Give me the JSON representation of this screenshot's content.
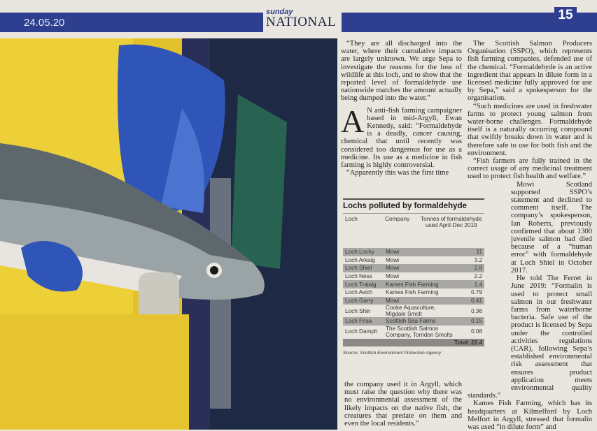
{
  "header": {
    "date": "24.05.20",
    "logo_top": "sunday",
    "logo_main": "NATIONAL",
    "page": "15"
  },
  "article": {
    "col1": [
      "“They are all discharged into the water, where their cumulative impacts are largely unknown. We urge Sepa to investigate the reasons for the loss of wildlife at this loch, and to show that the reported level of formaldehyde use nationwide matches the amount actually being dumped into the water.”",
      "N anti-fish farming campaigner based in mid-Argyll, Ewan Kennedy, said: “Formaldehyde is a deadly, cancer causing, chemical that until recently was considered too dangerous for use as a medicine. Its use as a medicine in fish farming is highly controversial.",
      "“Apparently this was the first time"
    ],
    "drop_cap": "A",
    "col1_bottom": "the company used it in Argyll, which must raise the question why there was no environmental assessment of the likely impacts on the native fish, the creatures that predate on them and even the local residents.”",
    "col2": [
      "The Scottish Salmon Producers Organisation (SSPO), which represents fish farming companies, defended use of the chemical. “Formaldehyde is an active ingredient that appears in dilute form in a licensed medicine fully approved for use by Sepa,” said a spokesperson for the organisation.",
      "“Such medicines are used in freshwater farms to protect young salmon from water-borne challenges. Formaldehyde itself is a naturally occurring compound that swiftly breaks down in water and is therefore safe to use for both fish and the environment.",
      "“Fish farmers are fully trained in the correct usage of any medicinal treatment used to protect fish health and welfare.”",
      "Mowi Scotland supported SSPO’s statement and declined to comment itself. The company’s spokesperson, Ian Roberts, previously confirmed that about 1300 juvenile salmon had died because of a “human error” with formaldehyde at Loch Shiel in October 2017.",
      "He told The Ferret in June 2019: “Formalin is used to protect small salmon in our freshwater farms from waterborne bacteria. Safe use of the product is licensed by Sepa under the controlled activities regulations (CAR), following Sepa’s established environmental risk assessment that ensures product application meets environmental quality standards.”",
      "Kames Fish Farming, which has its headquarters at Kilmelford by Loch Melfort in Argyll, stressed that formalin was used “in dilute form” and"
    ]
  },
  "table": {
    "title": "Lochs polluted by formaldehyde",
    "headers": [
      "Loch",
      "Company",
      "Tonnes of formaldehyde used April-Dec 2019"
    ],
    "rows": [
      [
        "Loch Lochy",
        "Mowi",
        11
      ],
      [
        "Loch Arkaig",
        "Mowi",
        3.2
      ],
      [
        "Loch Shiel",
        "Mowi",
        2.8
      ],
      [
        "Loch Ness",
        "Mowi",
        2.2
      ],
      [
        "Loch Tralaig",
        "Kames Fish Farming",
        1.4
      ],
      [
        "Loch Avich",
        "Kames Fish Farming",
        0.79
      ],
      [
        "Loch Garry",
        "Mowi",
        0.41
      ],
      [
        "Loch Shin",
        "Cooke Aquaculture, Migdale Smolt",
        0.36
      ],
      [
        "Loch Frisa",
        "Scottish Sea Farms",
        0.15
      ],
      [
        "Loch Damph",
        "The Scottish Salmon Company, Torridon Smolts",
        0.08
      ]
    ],
    "total_label": "Total:",
    "total": 22.4,
    "source": "Source: Scottish Environment Protection Agency"
  }
}
